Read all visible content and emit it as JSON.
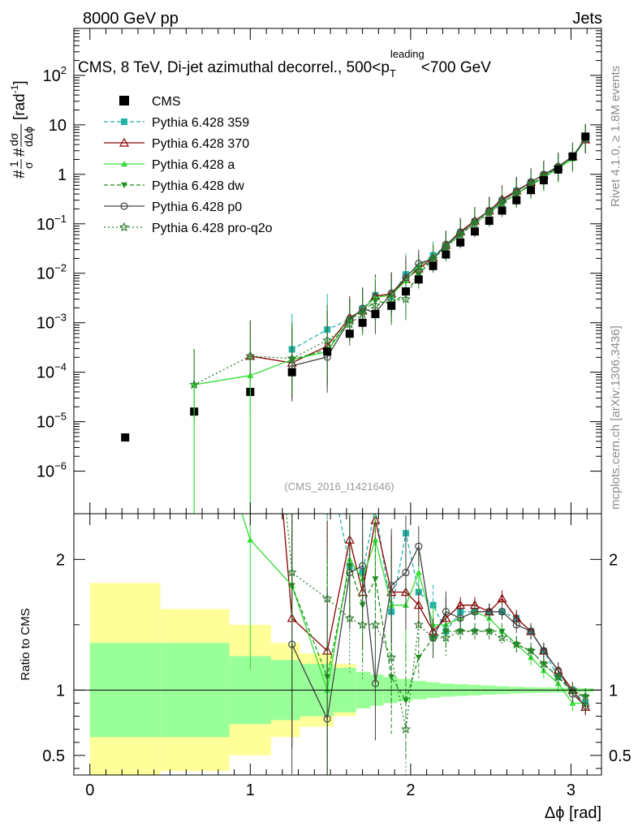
{
  "header": {
    "left": "8000 GeV pp",
    "right": "Jets",
    "side_top": "Rivet 4.1.0, ≥ 1.8M events",
    "side_bottom": "mcplots.cern.ch [arXiv:1306.3436]",
    "watermark": "(CMS_2016_I1421646)"
  },
  "colors": {
    "cms": "#000000",
    "p359": "#20b2aa",
    "p370": "#8b0000",
    "pa": "#33dd33",
    "pdw": "#1f8f1f",
    "pp0": "#444444",
    "pq2o": "#2e7d32",
    "band_syst": "#ffff99",
    "band_stat": "#99ff99"
  },
  "chart_data": {
    "type": "line",
    "title_parts": {
      "main": "CMS, 8 TeV, Di-jet azimuthal decorrel., 500<p",
      "sub": "T",
      "sup": "leading",
      "tail": "<700 GeV"
    },
    "ylabel_top": {
      "num": "#",
      "frac1": "1",
      "frac1_den": "σ",
      "hash": "#",
      "frac2": "dσ",
      "frac2_den": "dΔϕ",
      "unit": "[rad",
      "unit_sup": "-1",
      "unit_close": "]"
    },
    "ylabel_bottom": "Ratio to CMS",
    "xlabel": "Δϕ [rad]",
    "xlim": [
      -0.1,
      3.19
    ],
    "ylim_top_log": [
      -6.86,
      2.95
    ],
    "ylim_bottom": [
      0.35,
      2.35
    ],
    "x_ticks": [
      "0",
      "1",
      "2",
      "3"
    ],
    "y_ticks_top": [
      {
        "base": "10",
        "exp": "2"
      },
      {
        "base": "10",
        "exp": ""
      },
      {
        "base": "1",
        "exp": ""
      },
      {
        "base": "10",
        "exp": "−1"
      },
      {
        "base": "10",
        "exp": "−2"
      },
      {
        "base": "10",
        "exp": "−3"
      },
      {
        "base": "10",
        "exp": "−4"
      },
      {
        "base": "10",
        "exp": "−5"
      },
      {
        "base": "10",
        "exp": "−6"
      }
    ],
    "y_ticks_bottom": [
      "0.5",
      "1",
      "2"
    ],
    "x": [
      0.22,
      0.65,
      1.0,
      1.26,
      1.48,
      1.62,
      1.7,
      1.78,
      1.88,
      1.97,
      2.05,
      2.14,
      2.22,
      2.31,
      2.4,
      2.49,
      2.57,
      2.66,
      2.75,
      2.83,
      2.92,
      3.01,
      3.09
    ],
    "cms": [
      4.8e-06,
      1.6e-05,
      4e-05,
      0.0001,
      0.00026,
      0.0006,
      0.001,
      0.0015,
      0.0022,
      0.0043,
      0.0075,
      0.014,
      0.024,
      0.042,
      0.07,
      0.115,
      0.185,
      0.3,
      0.48,
      0.76,
      1.25,
      2.3,
      5.8
    ],
    "band_edges": [
      0.0,
      0.44,
      0.87,
      1.13,
      1.31,
      1.52,
      1.66,
      1.75,
      1.83,
      1.92,
      2.01,
      2.1,
      2.18,
      2.27,
      2.36,
      2.44,
      2.53,
      2.62,
      2.71,
      2.79,
      2.88,
      2.97,
      3.06,
      3.14
    ],
    "band_stat": [
      0.36,
      0.36,
      0.26,
      0.23,
      0.2,
      0.17,
      0.14,
      0.12,
      0.1,
      0.085,
      0.07,
      0.06,
      0.05,
      0.045,
      0.04,
      0.035,
      0.03,
      0.025,
      0.022,
      0.02,
      0.018,
      0.016,
      0.015
    ],
    "band_syst": [
      0.82,
      0.62,
      0.5,
      0.36,
      0.28,
      0.2,
      0.14,
      0.12,
      0.1,
      0.085,
      0.07,
      0.06,
      0.05,
      0.045,
      0.04,
      0.035,
      0.03,
      0.025,
      0.022,
      0.02,
      0.018,
      0.016,
      0.015
    ],
    "series": [
      {
        "key": "p359",
        "name": "Pythia 6.428 359",
        "color": "#20b2aa",
        "dash": "5,3",
        "marker": "square",
        "x": [
          1.26,
          1.48,
          1.62,
          1.7,
          1.78,
          1.88,
          1.97,
          2.05,
          2.14,
          2.22,
          2.31,
          2.4,
          2.49,
          2.57,
          2.66,
          2.75,
          2.83,
          2.92,
          3.01,
          3.09
        ],
        "ratio": [
          2.9,
          2.8,
          1.95,
          1.9,
          2.4,
          1.6,
          2.2,
          1.75,
          1.65,
          1.45,
          1.6,
          1.6,
          1.6,
          1.6,
          1.55,
          1.45,
          1.3,
          1.1,
          1.0,
          0.9
        ]
      },
      {
        "key": "p370",
        "name": "Pythia 6.428 370",
        "color": "#8b0000",
        "dash": "",
        "marker": "triangle-open",
        "x": [
          1.0,
          1.26,
          1.48,
          1.62,
          1.7,
          1.78,
          1.88,
          1.97,
          2.05,
          2.14,
          2.22,
          2.31,
          2.4,
          2.49,
          2.57,
          2.66,
          2.75,
          2.83,
          2.92,
          3.01,
          3.09
        ],
        "ratio": [
          5.3,
          1.55,
          1.3,
          2.15,
          1.75,
          2.3,
          1.75,
          1.75,
          1.65,
          1.45,
          1.55,
          1.65,
          1.65,
          1.6,
          1.7,
          1.55,
          1.45,
          1.3,
          1.15,
          1.0,
          0.87
        ]
      },
      {
        "key": "pa",
        "name": "Pythia 6.428 a",
        "color": "#33dd33",
        "dash": "",
        "marker": "triangle-up",
        "x": [
          0.65,
          1.0,
          1.26,
          1.48,
          1.62,
          1.7,
          1.78,
          1.88,
          1.97,
          2.05,
          2.14,
          2.22,
          2.31,
          2.4,
          2.49,
          2.57,
          2.66,
          2.75,
          2.83,
          2.92,
          3.01,
          3.09
        ],
        "ratio": [
          3.5,
          2.15,
          1.8,
          1.0,
          2.0,
          1.85,
          2.15,
          1.65,
          1.65,
          1.9,
          1.5,
          1.5,
          1.55,
          1.6,
          1.55,
          1.45,
          1.35,
          1.25,
          1.15,
          1.05,
          0.9,
          0.9
        ]
      },
      {
        "key": "pdw",
        "name": "Pythia 6.428 dw",
        "color": "#1f8f1f",
        "dash": "5,3",
        "marker": "triangle-down",
        "x": [
          1.26,
          1.48,
          1.62,
          1.7,
          1.78,
          1.88,
          1.97,
          2.05,
          2.14,
          2.22,
          2.31,
          2.4,
          2.49,
          2.57,
          2.66,
          2.75,
          2.83,
          2.92,
          3.01,
          3.09
        ],
        "ratio": [
          1.8,
          1.1,
          1.95,
          1.65,
          1.85,
          1.1,
          0.92,
          1.25,
          1.4,
          1.45,
          1.45,
          1.45,
          1.45,
          1.45,
          1.35,
          1.3,
          1.2,
          1.1,
          0.98,
          0.95
        ]
      },
      {
        "key": "pp0",
        "name": "Pythia 6.428 p0",
        "color": "#444444",
        "dash": "",
        "marker": "circle-open",
        "x": [
          1.26,
          1.48,
          1.62,
          1.7,
          1.78,
          1.88,
          1.97,
          2.05,
          2.14,
          2.22,
          2.31,
          2.4,
          2.49,
          2.57,
          2.66,
          2.75,
          2.83,
          2.92,
          3.01,
          3.09
        ],
        "ratio": [
          1.35,
          0.78,
          1.9,
          1.95,
          1.05,
          1.8,
          1.9,
          2.1,
          1.4,
          1.6,
          1.55,
          1.6,
          1.6,
          1.6,
          1.5,
          1.45,
          1.3,
          1.15,
          0.97,
          0.88
        ]
      },
      {
        "key": "pq2o",
        "name": "Pythia 6.428 pro-q2o",
        "color": "#2e7d32",
        "dash": "2,3",
        "marker": "star",
        "x": [
          0.65,
          1.0,
          1.26,
          1.48,
          1.62,
          1.7,
          1.78,
          1.88,
          1.97,
          2.05,
          2.14,
          2.22,
          2.31,
          2.4,
          2.49,
          2.57,
          2.66,
          2.75,
          2.83,
          2.92,
          3.01,
          3.09
        ],
        "ratio": [
          3.5,
          5.3,
          1.9,
          1.7,
          1.55,
          1.5,
          1.5,
          1.25,
          0.7,
          1.5,
          1.4,
          1.4,
          1.45,
          1.45,
          1.45,
          1.4,
          1.35,
          1.3,
          1.2,
          1.1,
          1.0,
          0.95
        ]
      }
    ],
    "legend": [
      "CMS",
      "Pythia 6.428 359",
      "Pythia 6.428 370",
      "Pythia 6.428 a",
      "Pythia 6.428 dw",
      "Pythia 6.428 p0",
      "Pythia 6.428 pro-q2o"
    ],
    "legend_position": "top-left"
  }
}
